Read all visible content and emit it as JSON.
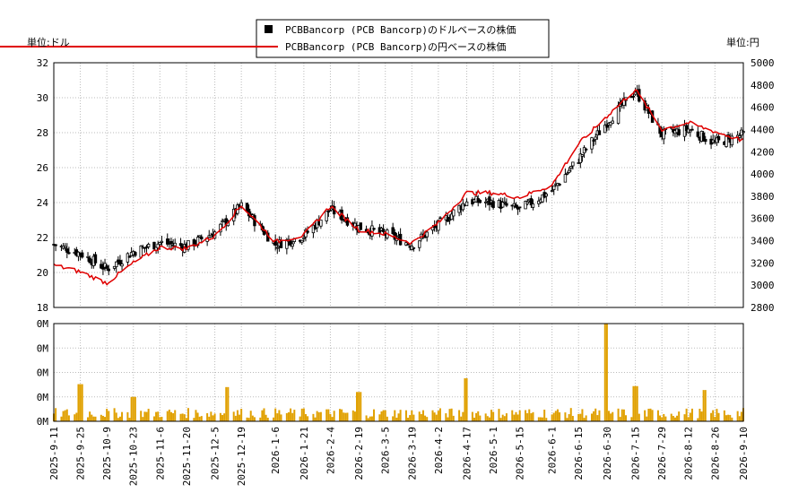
{
  "chart_data": [
    {
      "type": "candlestick+line",
      "legend": [
        {
          "name": "PCBBancorp (PCB Bancorp)のドルベースの株価",
          "color": "#000000",
          "marker": "square"
        },
        {
          "name": "PCBBancorp (PCB Bancorp)の円ベースの株価",
          "color": "#e00000",
          "marker": "line"
        }
      ],
      "legend_position": "top-center",
      "y_left_unit_label": "単位:ドル",
      "y_right_unit_label": "単位:円",
      "y_left_ticks": [
        18,
        20,
        22,
        24,
        26,
        28,
        30,
        32
      ],
      "y_left_range": [
        18,
        32
      ],
      "y_right_ticks": [
        2800,
        3000,
        3200,
        3400,
        3600,
        3800,
        4000,
        4200,
        4400,
        4600,
        4800,
        5000
      ],
      "y_right_range": [
        2800,
        5000
      ],
      "x_date_range": [
        "2025-09-11",
        "2026-09-10"
      ],
      "x_tick_labels": [
        "2025-9-11",
        "2025-9-25",
        "2025-10-9",
        "2025-10-23",
        "2025-11-6",
        "2025-11-20",
        "2025-12-5",
        "2025-12-19",
        "2026-1-6",
        "2026-1-21",
        "2026-2-4",
        "2026-2-19",
        "2026-3-5",
        "2026-3-19",
        "2026-4-2",
        "2026-4-17",
        "2026-5-1",
        "2026-5-15",
        "2026-6-1",
        "2026-6-15",
        "2026-6-30",
        "2026-7-15",
        "2026-7-29",
        "2026-8-12",
        "2026-8-26",
        "2026-9-10"
      ],
      "grid": true,
      "usd_close_keypoints": [
        [
          "2025-09-11",
          21.6
        ],
        [
          "2025-09-25",
          21.1
        ],
        [
          "2025-10-09",
          20.2
        ],
        [
          "2025-10-23",
          21.2
        ],
        [
          "2025-11-06",
          21.7
        ],
        [
          "2025-11-20",
          21.5
        ],
        [
          "2025-12-05",
          22.3
        ],
        [
          "2025-12-19",
          23.8
        ],
        [
          "2026-01-06",
          21.6
        ],
        [
          "2026-01-21",
          22.1
        ],
        [
          "2026-02-04",
          23.6
        ],
        [
          "2026-02-19",
          22.6
        ],
        [
          "2026-03-05",
          22.2
        ],
        [
          "2026-03-19",
          21.6
        ],
        [
          "2026-04-02",
          22.7
        ],
        [
          "2026-04-17",
          24.1
        ],
        [
          "2026-05-01",
          24.0
        ],
        [
          "2026-05-15",
          23.6
        ],
        [
          "2026-06-01",
          24.7
        ],
        [
          "2026-06-15",
          26.5
        ],
        [
          "2026-06-30",
          28.6
        ],
        [
          "2026-07-15",
          30.4
        ],
        [
          "2026-07-29",
          27.9
        ],
        [
          "2026-08-12",
          28.2
        ],
        [
          "2026-08-26",
          27.4
        ],
        [
          "2026-09-10",
          27.9
        ]
      ],
      "jpy_close_keypoints": [
        [
          "2025-09-11",
          3180
        ],
        [
          "2025-09-25",
          3120
        ],
        [
          "2025-10-09",
          3020
        ],
        [
          "2025-10-23",
          3200
        ],
        [
          "2025-11-06",
          3340
        ],
        [
          "2025-11-20",
          3330
        ],
        [
          "2025-12-05",
          3440
        ],
        [
          "2025-12-19",
          3720
        ],
        [
          "2026-01-06",
          3390
        ],
        [
          "2026-01-21",
          3450
        ],
        [
          "2026-02-04",
          3710
        ],
        [
          "2026-02-19",
          3500
        ],
        [
          "2026-03-05",
          3460
        ],
        [
          "2026-03-19",
          3380
        ],
        [
          "2026-04-02",
          3560
        ],
        [
          "2026-04-17",
          3830
        ],
        [
          "2026-05-01",
          3830
        ],
        [
          "2026-05-15",
          3790
        ],
        [
          "2026-06-01",
          3900
        ],
        [
          "2026-06-15",
          4270
        ],
        [
          "2026-06-30",
          4520
        ],
        [
          "2026-07-15",
          4760
        ],
        [
          "2026-07-29",
          4400
        ],
        [
          "2026-08-12",
          4460
        ],
        [
          "2026-08-26",
          4380
        ],
        [
          "2026-09-10",
          4300
        ]
      ]
    },
    {
      "type": "bar",
      "series_name": "volume",
      "color": "#e0a000",
      "y_tick_labels": [
        "0M",
        "0M",
        "0M",
        "0M",
        "0M"
      ],
      "x_date_range": [
        "2025-09-11",
        "2026-09-10"
      ],
      "baseline_level": 0.08,
      "spikes": [
        [
          "2025-09-25",
          0.38
        ],
        [
          "2025-10-23",
          0.25
        ],
        [
          "2025-12-12",
          0.35
        ],
        [
          "2026-02-19",
          0.3
        ],
        [
          "2026-04-17",
          0.44
        ],
        [
          "2026-06-29",
          1.0
        ],
        [
          "2026-07-15",
          0.36
        ],
        [
          "2026-08-21",
          0.32
        ]
      ]
    }
  ]
}
